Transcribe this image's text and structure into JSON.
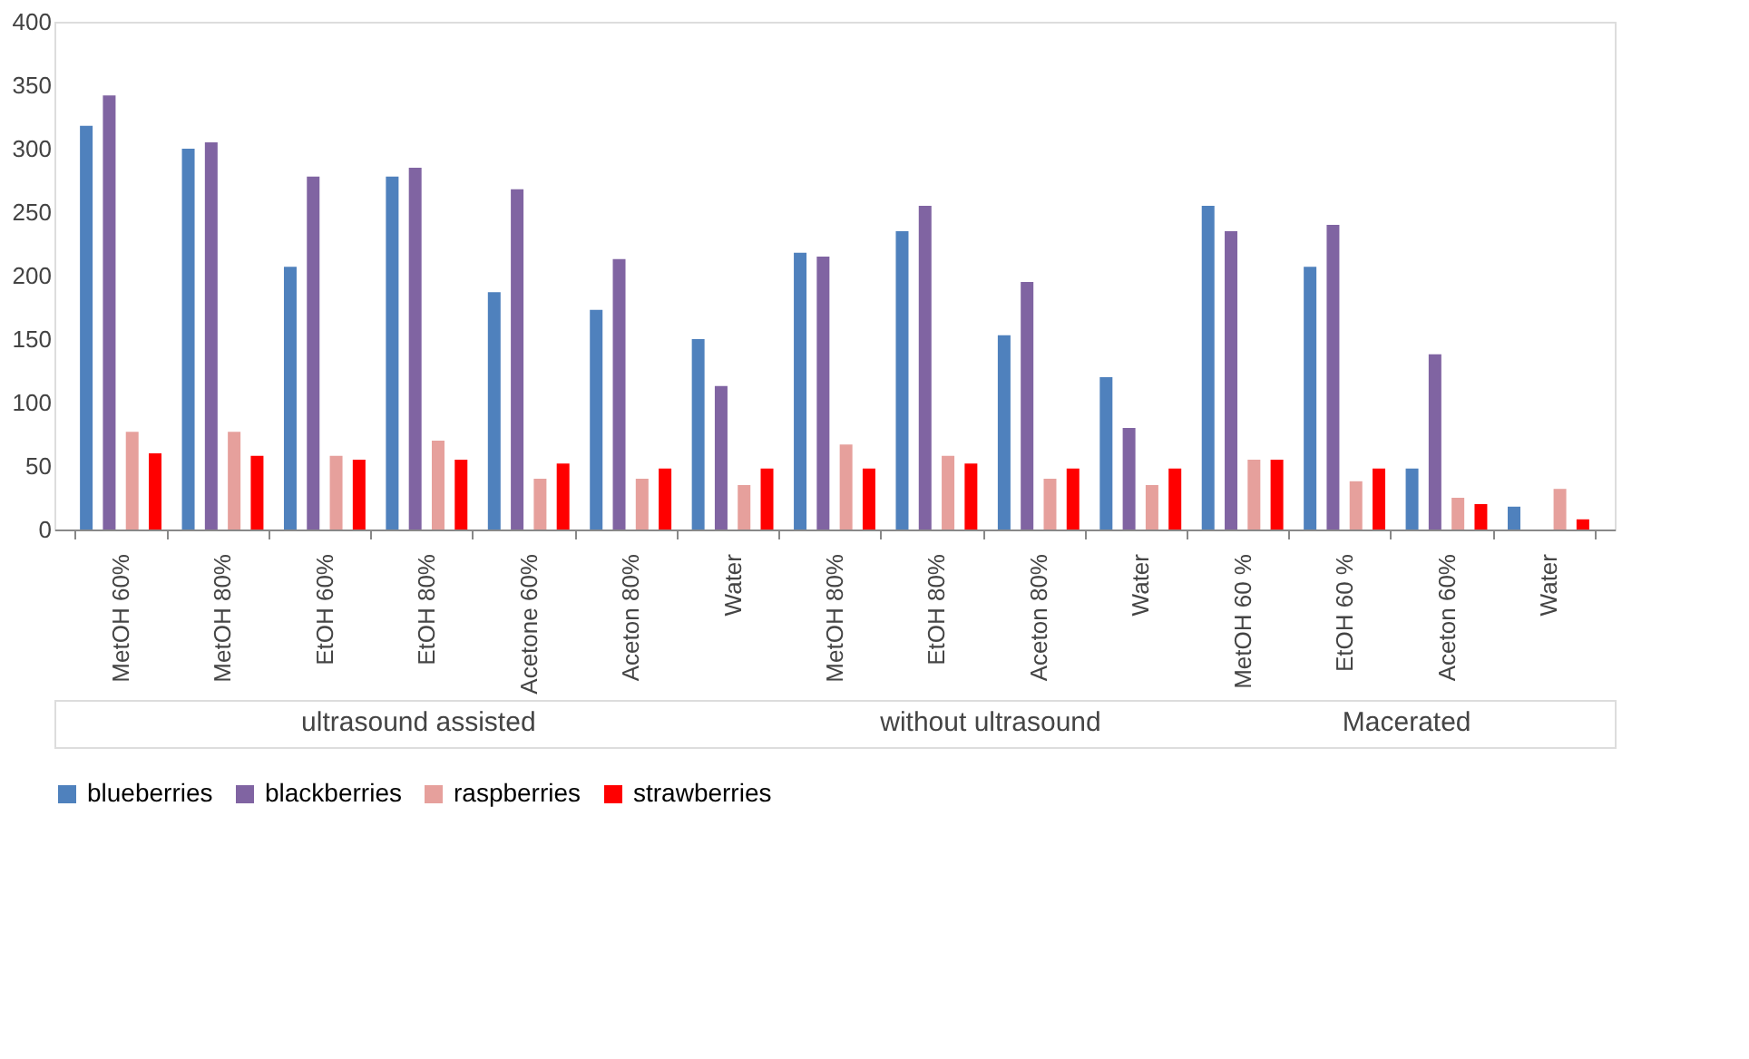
{
  "chart_data": {
    "type": "bar",
    "categories": [
      "MetOH 60%",
      "MetOH 80%",
      "EtOH 60%",
      "EtOH 80%",
      "Acetone 60%",
      "Aceton 80%",
      "Water",
      "MetOH 80%",
      "EtOH 80%",
      "Aceton 80%",
      "Water",
      "MetOH 60 %",
      "EtOH 60 %",
      "Aceton 60%",
      "Water"
    ],
    "series": [
      {
        "name": "blueberries",
        "color": "#4f81bd",
        "values": [
          318,
          300,
          207,
          278,
          187,
          173,
          150,
          218,
          235,
          153,
          120,
          255,
          207,
          48,
          18
        ]
      },
      {
        "name": "blackberries",
        "color": "#8064a2",
        "values": [
          342,
          305,
          278,
          285,
          268,
          213,
          113,
          215,
          255,
          195,
          80,
          235,
          240,
          138,
          null
        ]
      },
      {
        "name": "raspberries",
        "color": "#e6a09c",
        "values": [
          77,
          77,
          58,
          70,
          40,
          40,
          35,
          67,
          58,
          40,
          35,
          55,
          38,
          25,
          32
        ]
      },
      {
        "name": "strawberries",
        "color": "#ff0000",
        "values": [
          60,
          58,
          55,
          55,
          52,
          48,
          48,
          48,
          52,
          48,
          48,
          55,
          48,
          20,
          8
        ]
      }
    ],
    "annotations": [
      "ultrasound assisted",
      "without ultrasound",
      "Macerated"
    ],
    "ylim": [
      0,
      400
    ],
    "yticks": [
      0,
      50,
      100,
      150,
      200,
      250,
      300,
      350,
      400
    ],
    "grid": false,
    "legend": "bottom"
  }
}
